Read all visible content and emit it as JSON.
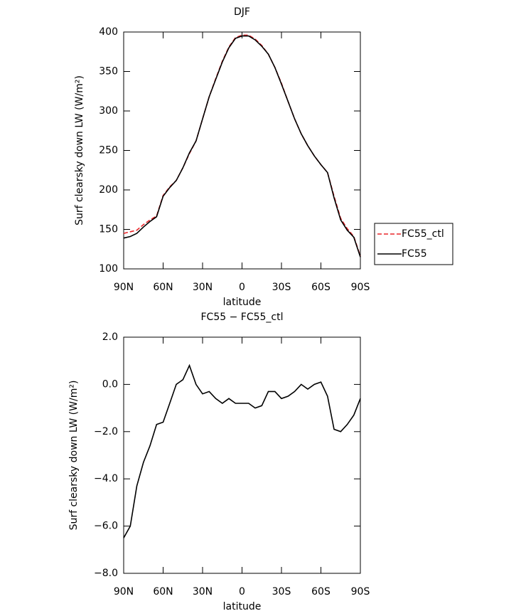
{
  "chart_data": [
    {
      "type": "line",
      "title": "DJF",
      "xlabel": "latitude",
      "ylabel": "Surf clearsky down LW (W/m²)",
      "x": [
        90,
        85,
        80,
        75,
        70,
        65,
        60,
        55,
        50,
        45,
        40,
        35,
        30,
        25,
        20,
        15,
        10,
        5,
        0,
        -5,
        -10,
        -15,
        -20,
        -25,
        -30,
        -35,
        -40,
        -45,
        -50,
        -55,
        -60,
        -65,
        -70,
        -75,
        -80,
        -85,
        -90
      ],
      "series": [
        {
          "name": "FC55_ctl",
          "color": "#e8262a",
          "dash": "dashed",
          "values": [
            145,
            147,
            149,
            156,
            162,
            167,
            193,
            204,
            212,
            228,
            246,
            262,
            290,
            318,
            341,
            363,
            381,
            393,
            396,
            396,
            391,
            383,
            372,
            355,
            335,
            312,
            290,
            271,
            256,
            243,
            232,
            222,
            192,
            164,
            151,
            141,
            116
          ]
        },
        {
          "name": "FC55",
          "color": "#000000",
          "dash": "solid",
          "values": [
            139,
            141,
            145,
            153,
            160,
            166,
            192,
            203,
            212,
            228,
            247,
            262,
            290,
            318,
            340,
            362,
            380,
            392,
            395,
            395,
            390,
            382,
            372,
            355,
            334,
            312,
            290,
            271,
            256,
            243,
            232,
            222,
            190,
            162,
            149,
            140,
            115
          ]
        }
      ],
      "xlim": [
        90,
        -90
      ],
      "xticks": [
        {
          "value": 90,
          "label": "90N"
        },
        {
          "value": 60,
          "label": "60N"
        },
        {
          "value": 30,
          "label": "30N"
        },
        0,
        {
          "value": -30,
          "label": "30S"
        },
        {
          "value": -60,
          "label": "60S"
        },
        {
          "value": -90,
          "label": "90S"
        }
      ],
      "ylim": [
        100,
        400
      ],
      "yticks": [
        100,
        150,
        200,
        250,
        300,
        350,
        400
      ],
      "legend": "right"
    },
    {
      "type": "line",
      "title": "FC55 − FC55_ctl",
      "xlabel": "latitude",
      "ylabel": "Surf clearsky down LW (W/m²)",
      "x": [
        90,
        85,
        80,
        75,
        70,
        65,
        60,
        55,
        50,
        45,
        40,
        35,
        30,
        25,
        20,
        15,
        10,
        5,
        0,
        -5,
        -10,
        -15,
        -20,
        -25,
        -30,
        -35,
        -40,
        -45,
        -50,
        -55,
        -60,
        -65,
        -70,
        -75,
        -80,
        -85,
        -90
      ],
      "values": [
        -6.5,
        -6.0,
        -4.3,
        -3.3,
        -2.6,
        -1.7,
        -1.6,
        -0.8,
        0.0,
        0.2,
        0.8,
        0.0,
        -0.4,
        -0.3,
        -0.6,
        -0.8,
        -0.6,
        -0.8,
        -0.8,
        -0.8,
        -1.0,
        -0.9,
        -0.3,
        -0.3,
        -0.6,
        -0.5,
        -0.3,
        0.0,
        -0.2,
        0.0,
        0.1,
        -0.5,
        -1.9,
        -2.0,
        -1.7,
        -1.3,
        -0.6
      ],
      "color": "#000000",
      "xlim": [
        90,
        -90
      ],
      "xticks": [
        {
          "value": 90,
          "label": "90N"
        },
        {
          "value": 60,
          "label": "60N"
        },
        {
          "value": 30,
          "label": "30N"
        },
        0,
        {
          "value": -30,
          "label": "30S"
        },
        {
          "value": -60,
          "label": "60S"
        },
        {
          "value": -90,
          "label": "90S"
        }
      ],
      "ylim": [
        -8,
        2
      ],
      "yticks": [
        {
          "value": 2,
          "label": "2.0"
        },
        {
          "value": 0,
          "label": "0.0"
        },
        {
          "value": -2,
          "label": "−2.0"
        },
        {
          "value": -4,
          "label": "−4.0"
        },
        {
          "value": -6,
          "label": "−6.0"
        },
        {
          "value": -8,
          "label": "−8.0"
        }
      ]
    }
  ]
}
